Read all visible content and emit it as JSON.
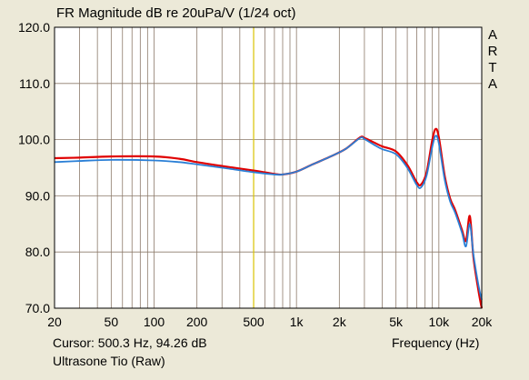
{
  "window": {
    "title": "FR Magnitude dB re 20uPa/V (1/24 oct)",
    "watermark_letters": [
      "A",
      "R",
      "T",
      "A"
    ]
  },
  "footer": {
    "cursor": "Cursor: 500.3 Hz, 94.26 dB",
    "series_name": "Ultrasone Tio (Raw)",
    "x_axis_label": "Frequency (Hz)"
  },
  "colors": {
    "background": "#ece9d8",
    "plot_background": "#ffffff",
    "grid": "#8c7a6a",
    "cursor_line": "#d8c400",
    "series_red": "#e00000",
    "series_blue": "#2a7fd6"
  },
  "chart_data": {
    "type": "line",
    "title": "FR Magnitude dB re 20uPa/V (1/24 oct)",
    "xlabel": "Frequency (Hz)",
    "ylabel": "",
    "x_scale": "log",
    "xlim": [
      20,
      20000
    ],
    "ylim": [
      70,
      120
    ],
    "x_ticks": [
      20,
      50,
      100,
      200,
      500,
      1000,
      2000,
      5000,
      10000,
      20000
    ],
    "x_tick_labels": [
      "20",
      "50",
      "100",
      "200",
      "500",
      "1k",
      "2k",
      "5k",
      "10k",
      "20k"
    ],
    "y_ticks": [
      70,
      80,
      90,
      100,
      110,
      120
    ],
    "y_tick_labels": [
      "70.0",
      "80.0",
      "90.0",
      "100.0",
      "110.0",
      "120.0"
    ],
    "grid": true,
    "cursor_x": 500.3,
    "series": [
      {
        "color": "#e00000",
        "points": [
          [
            20,
            96.7
          ],
          [
            30,
            96.8
          ],
          [
            50,
            97.0
          ],
          [
            100,
            97.0
          ],
          [
            150,
            96.6
          ],
          [
            200,
            96.0
          ],
          [
            300,
            95.3
          ],
          [
            500,
            94.5
          ],
          [
            700,
            93.9
          ],
          [
            800,
            93.8
          ],
          [
            1000,
            94.3
          ],
          [
            1300,
            95.6
          ],
          [
            1700,
            96.9
          ],
          [
            2200,
            98.3
          ],
          [
            2800,
            100.4
          ],
          [
            3000,
            100.3
          ],
          [
            3500,
            99.5
          ],
          [
            4000,
            98.8
          ],
          [
            5000,
            97.9
          ],
          [
            6000,
            95.5
          ],
          [
            7000,
            92.4
          ],
          [
            7500,
            92.0
          ],
          [
            8200,
            94.2
          ],
          [
            9000,
            100.0
          ],
          [
            9500,
            101.9
          ],
          [
            10000,
            100.4
          ],
          [
            11000,
            93.5
          ],
          [
            12000,
            89.5
          ],
          [
            13000,
            87.5
          ],
          [
            14500,
            84.0
          ],
          [
            15500,
            82.0
          ],
          [
            16500,
            86.4
          ],
          [
            17500,
            79.0
          ],
          [
            19000,
            73.0
          ],
          [
            20000,
            70.0
          ]
        ]
      },
      {
        "color": "#2a7fd6",
        "points": [
          [
            20,
            96.0
          ],
          [
            30,
            96.2
          ],
          [
            50,
            96.4
          ],
          [
            100,
            96.3
          ],
          [
            150,
            96.0
          ],
          [
            200,
            95.6
          ],
          [
            300,
            95.0
          ],
          [
            500,
            94.2
          ],
          [
            700,
            93.8
          ],
          [
            800,
            93.8
          ],
          [
            1000,
            94.3
          ],
          [
            1300,
            95.6
          ],
          [
            1700,
            96.9
          ],
          [
            2200,
            98.3
          ],
          [
            2800,
            100.3
          ],
          [
            3000,
            100.1
          ],
          [
            3500,
            99.1
          ],
          [
            4000,
            98.3
          ],
          [
            5000,
            97.4
          ],
          [
            6000,
            95.0
          ],
          [
            7000,
            91.9
          ],
          [
            7500,
            91.5
          ],
          [
            8200,
            93.6
          ],
          [
            9000,
            98.8
          ],
          [
            9500,
            100.7
          ],
          [
            10000,
            99.3
          ],
          [
            11000,
            92.8
          ],
          [
            12000,
            89.0
          ],
          [
            13000,
            87.0
          ],
          [
            14500,
            83.5
          ],
          [
            15500,
            81.0
          ],
          [
            16500,
            85.0
          ],
          [
            17500,
            79.5
          ],
          [
            19000,
            74.0
          ],
          [
            20000,
            71.5
          ]
        ]
      }
    ]
  }
}
